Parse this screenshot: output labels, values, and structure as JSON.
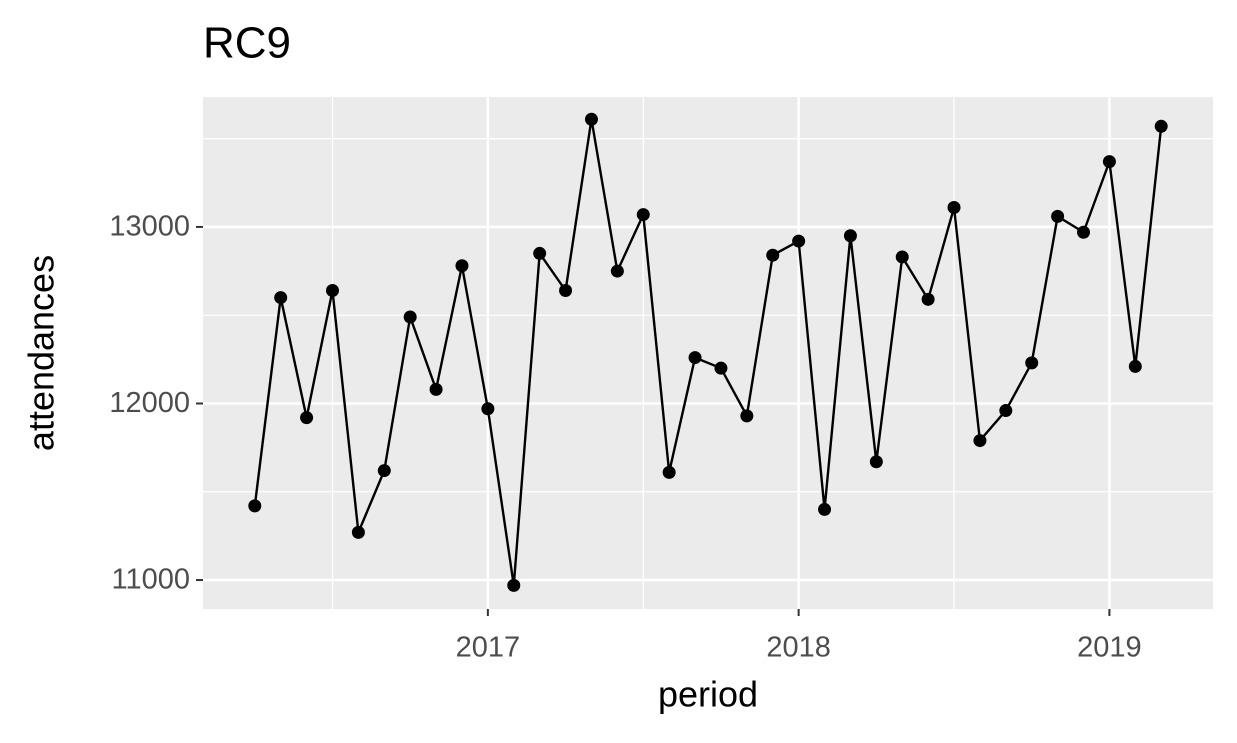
{
  "chart_data": {
    "type": "line",
    "title": "RC9",
    "x_label": "period",
    "y_label": "attendances",
    "x": [
      "2016-04",
      "2016-05",
      "2016-06",
      "2016-07",
      "2016-08",
      "2016-09",
      "2016-10",
      "2016-11",
      "2016-12",
      "2017-01",
      "2017-02",
      "2017-03",
      "2017-04",
      "2017-05",
      "2017-06",
      "2017-07",
      "2017-08",
      "2017-09",
      "2017-10",
      "2017-11",
      "2017-12",
      "2018-01",
      "2018-02",
      "2018-03",
      "2018-04",
      "2018-05",
      "2018-06",
      "2018-07",
      "2018-08",
      "2018-09",
      "2018-10",
      "2018-11",
      "2018-12",
      "2019-01",
      "2019-02",
      "2019-03"
    ],
    "series": [
      {
        "name": "attendances",
        "color": "#000000",
        "values": [
          11420,
          12600,
          11920,
          12640,
          11270,
          11620,
          12490,
          12080,
          12780,
          11970,
          10970,
          12850,
          12640,
          13610,
          12750,
          13070,
          11610,
          12260,
          12200,
          11930,
          12840,
          12920,
          11400,
          12950,
          11670,
          12830,
          12590,
          13110,
          11790,
          11960,
          12230,
          13060,
          12970,
          13370,
          12210,
          13570
        ]
      }
    ],
    "xlim": [
      "2016-02",
      "2019-05"
    ],
    "xticks": [
      "2017",
      "2018",
      "2019"
    ],
    "x_minor_ticks": [
      "2016-07",
      "2017-07",
      "2018-07"
    ],
    "ylim": [
      10836,
      13736
    ],
    "yticks": [
      11000,
      12000,
      13000
    ],
    "y_minor_ticks": [
      11500,
      12500,
      13500
    ],
    "grid": true,
    "markers": true
  }
}
